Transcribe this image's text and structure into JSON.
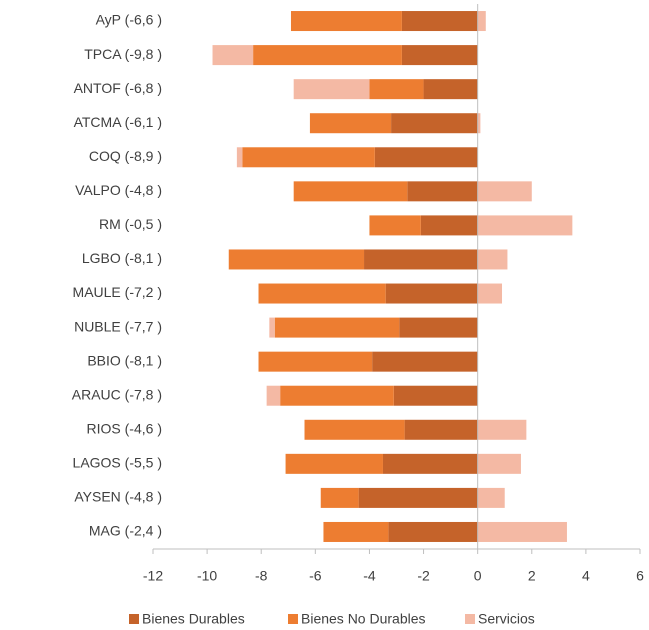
{
  "chart_data": {
    "type": "stacked-barh",
    "categories": [
      "AyP (-6,6 )",
      "TPCA (-9,8 )",
      "ANTOF (-6,8 )",
      "ATCMA (-6,1 )",
      "COQ (-8,9 )",
      "VALPO (-4,8 )",
      "RM (-0,5 )",
      "LGBO (-8,1 )",
      "MAULE (-7,2 )",
      "NUBLE (-7,7 )",
      "BBIO (-8,1 )",
      "ARAUC (-7,8 )",
      "RIOS (-4,6 )",
      "LAGOS (-5,5 )",
      "AYSEN (-4,8 )",
      "MAG (-2,4 )"
    ],
    "series": [
      {
        "name": "Bienes Durables",
        "color": "#c5632a",
        "values": [
          -2.8,
          -2.8,
          -2.0,
          -3.2,
          -3.8,
          -2.6,
          -2.1,
          -4.2,
          -3.4,
          -2.9,
          -3.9,
          -3.1,
          -2.7,
          -3.5,
          -4.4,
          -3.3
        ]
      },
      {
        "name": "Bienes No Durables",
        "color": "#ed7d31",
        "values": [
          -4.1,
          -5.5,
          -2.0,
          -3.0,
          -4.9,
          -4.2,
          -1.9,
          -5.0,
          -4.7,
          -4.6,
          -4.2,
          -4.2,
          -3.7,
          -3.6,
          -1.4,
          -2.4
        ]
      },
      {
        "name": "Servicios",
        "color": "#f4b9a4",
        "values": [
          0.3,
          -1.5,
          -2.8,
          0.1,
          -0.2,
          2.0,
          3.5,
          1.1,
          0.9,
          -0.2,
          0,
          -0.5,
          1.8,
          1.6,
          1.0,
          3.3
        ]
      }
    ],
    "xlim": [
      -12,
      6
    ],
    "xticks": [
      -12,
      -10,
      -8,
      -6,
      -4,
      -2,
      0,
      2,
      4,
      6
    ]
  }
}
